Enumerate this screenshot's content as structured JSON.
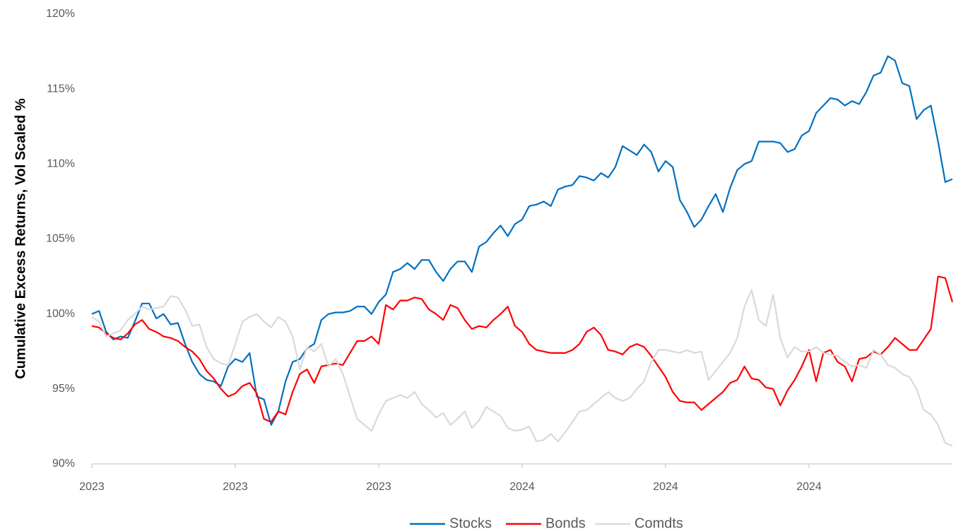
{
  "chart_data": {
    "type": "line",
    "y_label": "Cumulative Excess Returns, Vol Scaled %",
    "x": [
      0,
      1,
      2,
      3,
      4,
      5,
      6,
      7,
      8,
      9,
      10,
      11,
      12,
      13,
      14,
      15,
      16,
      17,
      18,
      19,
      20,
      21,
      22,
      23,
      24,
      25,
      26,
      27,
      28,
      29,
      30,
      31,
      32,
      33,
      34,
      35,
      36,
      37,
      38,
      39,
      40,
      41,
      42,
      43,
      44,
      45,
      46,
      47,
      48,
      49,
      50,
      51,
      52,
      53,
      54,
      55,
      56,
      57,
      58,
      59,
      60,
      61,
      62,
      63,
      64,
      65,
      66,
      67,
      68,
      69,
      70,
      71,
      72,
      73,
      74,
      75,
      76,
      77,
      78,
      79,
      80,
      81,
      82,
      83,
      84,
      85,
      86,
      87,
      88,
      89,
      90,
      91,
      92,
      93,
      94,
      95,
      96,
      97,
      98,
      99,
      100,
      101,
      102,
      103,
      104,
      105,
      106,
      107,
      108,
      109,
      110,
      111,
      112,
      113,
      114,
      115,
      116,
      117,
      118,
      119,
      120
    ],
    "xlim": [
      0,
      120
    ],
    "xticks": [
      {
        "value": 0,
        "label": "2023"
      },
      {
        "value": 20,
        "label": "2023"
      },
      {
        "value": 40,
        "label": "2023"
      },
      {
        "value": 60,
        "label": "2024"
      },
      {
        "value": 80,
        "label": "2024"
      },
      {
        "value": 100,
        "label": "2024"
      }
    ],
    "ylim": [
      90,
      120
    ],
    "yticks": [
      {
        "value": 90,
        "label": "90%"
      },
      {
        "value": 95,
        "label": "95%"
      },
      {
        "value": 100,
        "label": "100%"
      },
      {
        "value": 105,
        "label": "105%"
      },
      {
        "value": 110,
        "label": "110%"
      },
      {
        "value": 115,
        "label": "115%"
      },
      {
        "value": 120,
        "label": "120%"
      }
    ],
    "legend": "bottom",
    "series": [
      {
        "name": "Stocks",
        "color": "#0070c0",
        "values": [
          100,
          100.2,
          98.8,
          98.3,
          98.5,
          98.4,
          99.5,
          100.7,
          100.7,
          99.7,
          100,
          99.3,
          99.4,
          98,
          96.8,
          96,
          95.6,
          95.5,
          95.2,
          96.5,
          97,
          96.8,
          97.4,
          94.5,
          94.3,
          92.6,
          93.5,
          95.5,
          96.8,
          97,
          97.7,
          98,
          99.6,
          100,
          100.1,
          100.1,
          100.2,
          100.5,
          100.5,
          100,
          100.8,
          101.3,
          102.8,
          103,
          103.4,
          103,
          103.6,
          103.6,
          102.8,
          102.2,
          103,
          103.5,
          103.5,
          102.8,
          104.5,
          104.8,
          105.4,
          105.9,
          105.2,
          106,
          106.3,
          107.2,
          107.3,
          107.5,
          107.2,
          108.3,
          108.5,
          108.6,
          109.2,
          109.1,
          108.9,
          109.4,
          109.1,
          109.8,
          111.2,
          110.9,
          110.6,
          111.3,
          110.8,
          109.5,
          110.2,
          109.8,
          107.6,
          106.8,
          105.8,
          106.3,
          107.2,
          108,
          106.8,
          108.4,
          109.6,
          110,
          110.2,
          111.5,
          111.5,
          111.5,
          111.4,
          110.8,
          111,
          111.9,
          112.2,
          113.4,
          113.9,
          114.4,
          114.3,
          113.9,
          114.2,
          114,
          114.8,
          115.9,
          116.1,
          117.2,
          116.9,
          115.4,
          115.2,
          113,
          113.6,
          113.9,
          111.5,
          108.8,
          109
        ]
      },
      {
        "name": "Bonds",
        "color": "#ff0000",
        "values": [
          99.2,
          99.1,
          98.7,
          98.4,
          98.3,
          98.7,
          99.3,
          99.6,
          99,
          98.8,
          98.5,
          98.4,
          98.2,
          97.8,
          97.5,
          97,
          96.2,
          95.7,
          95,
          94.5,
          94.7,
          95.2,
          95.4,
          94.7,
          93,
          92.8,
          93.5,
          93.3,
          94.8,
          96,
          96.3,
          95.4,
          96.5,
          96.6,
          96.7,
          96.6,
          97.4,
          98.2,
          98.2,
          98.5,
          98,
          100.6,
          100.3,
          100.9,
          100.9,
          101.1,
          101,
          100.3,
          100,
          99.6,
          100.6,
          100.4,
          99.6,
          99,
          99.2,
          99.1,
          99.6,
          100,
          100.5,
          99.2,
          98.8,
          98,
          97.6,
          97.5,
          97.4,
          97.4,
          97.4,
          97.6,
          98,
          98.8,
          99.1,
          98.6,
          97.6,
          97.5,
          97.3,
          97.8,
          98,
          97.8,
          97.2,
          96.5,
          95.8,
          94.8,
          94.2,
          94.1,
          94.1,
          93.6,
          94,
          94.4,
          94.8,
          95.4,
          95.6,
          96.5,
          95.7,
          95.6,
          95.1,
          95,
          93.9,
          94.9,
          95.6,
          96.5,
          97.6,
          95.5,
          97.4,
          97.6,
          96.8,
          96.5,
          95.5,
          97,
          97.1,
          97.5,
          97.3,
          97.8,
          98.4,
          98,
          97.6,
          97.6,
          98.3,
          99,
          102.5,
          102.4,
          100.8
        ]
      },
      {
        "name": "Comdts",
        "color": "#d9d9d9",
        "values": [
          99.8,
          99.5,
          98.5,
          98.7,
          98.9,
          99.6,
          100,
          100.5,
          100.3,
          100.4,
          100.5,
          101.2,
          101.1,
          100.3,
          99.2,
          99.3,
          97.8,
          97,
          96.7,
          96.6,
          98,
          99.5,
          99.8,
          100,
          99.5,
          99.1,
          99.8,
          99.5,
          98.5,
          96.3,
          97.8,
          97.5,
          98,
          96.5,
          97,
          96,
          94.5,
          93,
          92.6,
          92.2,
          93.3,
          94.2,
          94.4,
          94.6,
          94.4,
          94.8,
          94,
          93.6,
          93.1,
          93.4,
          92.6,
          93,
          93.5,
          92.4,
          92.9,
          93.8,
          93.5,
          93.2,
          92.4,
          92.2,
          92.3,
          92.5,
          91.5,
          91.6,
          92,
          91.5,
          92.1,
          92.8,
          93.5,
          93.6,
          94,
          94.4,
          94.8,
          94.4,
          94.2,
          94.4,
          95,
          95.5,
          96.8,
          97.6,
          97.6,
          97.5,
          97.4,
          97.6,
          97.4,
          97.5,
          95.6,
          96.2,
          96.8,
          97.4,
          98.4,
          100.5,
          101.6,
          99.6,
          99.2,
          101.3,
          98.4,
          97.1,
          97.8,
          97.5,
          97.5,
          97.8,
          97.4,
          97.3,
          97.2,
          96.8,
          96.5,
          96.6,
          96.4,
          97.6,
          97.3,
          96.6,
          96.4,
          96,
          95.8,
          95,
          93.6,
          93.3,
          92.6,
          91.4,
          91.2
        ]
      }
    ]
  }
}
